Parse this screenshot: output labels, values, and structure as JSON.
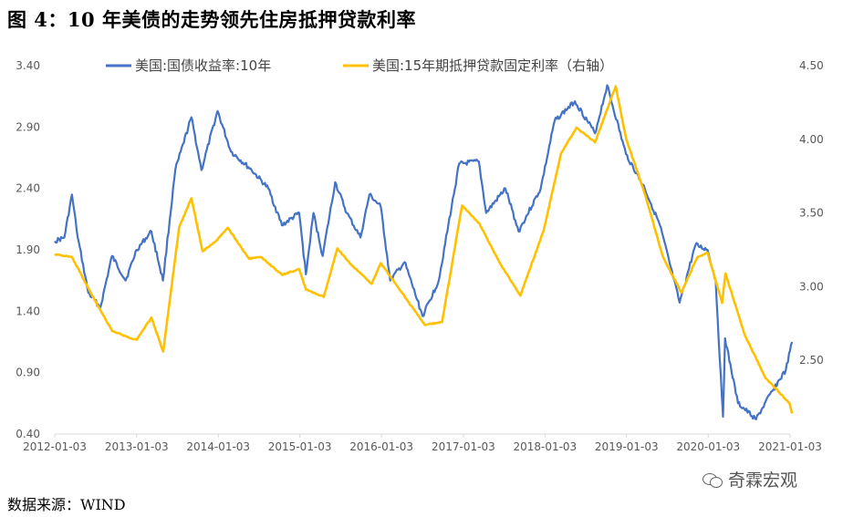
{
  "title": "图 4：10 年美债的走势领先住房抵押贷款利率",
  "source": "数据来源：WIND",
  "watermark": "奇霖宏观",
  "chart_data": {
    "type": "line",
    "title": "",
    "x_ticks": [
      "2012-01-03",
      "2013-01-03",
      "2014-01-03",
      "2015-01-03",
      "2016-01-03",
      "2017-01-03",
      "2018-01-03",
      "2019-01-03",
      "2020-01-03",
      "2021-01-03"
    ],
    "y_left": {
      "ticks": [
        "0.40",
        "0.90",
        "1.40",
        "1.90",
        "2.40",
        "2.90",
        "3.40"
      ],
      "lim": [
        0.4,
        3.4
      ]
    },
    "y_right": {
      "ticks": [
        "2.50",
        "3.00",
        "3.50",
        "4.00",
        "4.50"
      ],
      "lim": [
        2.0,
        4.5
      ]
    },
    "grid": false,
    "legend_position": "top",
    "series": [
      {
        "name": "美国:国债收益率:10年",
        "axis": "left",
        "color": "#4472C4",
        "points": [
          [
            "2012-01-03",
            1.97
          ],
          [
            "2012-02-15",
            2.0
          ],
          [
            "2012-03-20",
            2.35
          ],
          [
            "2012-04-15",
            2.0
          ],
          [
            "2012-06-01",
            1.55
          ],
          [
            "2012-07-25",
            1.43
          ],
          [
            "2012-09-15",
            1.85
          ],
          [
            "2012-11-15",
            1.65
          ],
          [
            "2013-01-03",
            1.9
          ],
          [
            "2013-03-10",
            2.05
          ],
          [
            "2013-05-01",
            1.65
          ],
          [
            "2013-06-25",
            2.55
          ],
          [
            "2013-09-05",
            2.98
          ],
          [
            "2013-10-20",
            2.55
          ],
          [
            "2013-12-31",
            3.03
          ],
          [
            "2014-03-01",
            2.7
          ],
          [
            "2014-06-01",
            2.55
          ],
          [
            "2014-08-15",
            2.4
          ],
          [
            "2014-10-15",
            2.1
          ],
          [
            "2014-12-31",
            2.2
          ],
          [
            "2015-01-30",
            1.7
          ],
          [
            "2015-03-05",
            2.2
          ],
          [
            "2015-04-15",
            1.85
          ],
          [
            "2015-06-10",
            2.45
          ],
          [
            "2015-08-01",
            2.2
          ],
          [
            "2015-10-01",
            2.0
          ],
          [
            "2015-11-10",
            2.35
          ],
          [
            "2015-12-31",
            2.25
          ],
          [
            "2016-02-11",
            1.65
          ],
          [
            "2016-04-15",
            1.8
          ],
          [
            "2016-07-05",
            1.36
          ],
          [
            "2016-09-15",
            1.65
          ],
          [
            "2016-12-15",
            2.6
          ],
          [
            "2017-03-13",
            2.62
          ],
          [
            "2017-04-15",
            2.2
          ],
          [
            "2017-07-10",
            2.4
          ],
          [
            "2017-09-07",
            2.05
          ],
          [
            "2017-12-15",
            2.4
          ],
          [
            "2018-02-15",
            2.95
          ],
          [
            "2018-05-17",
            3.11
          ],
          [
            "2018-08-15",
            2.85
          ],
          [
            "2018-10-08",
            3.24
          ],
          [
            "2018-12-31",
            2.68
          ],
          [
            "2019-03-25",
            2.4
          ],
          [
            "2019-06-01",
            2.1
          ],
          [
            "2019-08-28",
            1.47
          ],
          [
            "2019-11-07",
            1.94
          ],
          [
            "2019-12-31",
            1.9
          ],
          [
            "2020-02-05",
            1.65
          ],
          [
            "2020-03-09",
            0.54
          ],
          [
            "2020-03-18",
            1.18
          ],
          [
            "2020-05-15",
            0.65
          ],
          [
            "2020-08-04",
            0.52
          ],
          [
            "2020-10-15",
            0.75
          ],
          [
            "2020-12-15",
            0.92
          ],
          [
            "2021-01-12",
            1.15
          ]
        ]
      },
      {
        "name": "美国:15年期抵押贷款固定利率（右轴）",
        "axis": "right",
        "color": "#FFC000",
        "points": [
          [
            "2012-01-03",
            3.22
          ],
          [
            "2012-03-20",
            3.2
          ],
          [
            "2012-06-15",
            2.95
          ],
          [
            "2012-09-15",
            2.7
          ],
          [
            "2012-11-20",
            2.66
          ],
          [
            "2013-01-03",
            2.64
          ],
          [
            "2013-03-10",
            2.79
          ],
          [
            "2013-05-02",
            2.56
          ],
          [
            "2013-07-12",
            3.4
          ],
          [
            "2013-09-05",
            3.6
          ],
          [
            "2013-10-25",
            3.24
          ],
          [
            "2013-12-31",
            3.32
          ],
          [
            "2014-02-15",
            3.4
          ],
          [
            "2014-05-20",
            3.19
          ],
          [
            "2014-07-15",
            3.2
          ],
          [
            "2014-10-15",
            3.08
          ],
          [
            "2014-12-31",
            3.12
          ],
          [
            "2015-01-30",
            2.98
          ],
          [
            "2015-04-20",
            2.93
          ],
          [
            "2015-06-20",
            3.26
          ],
          [
            "2015-08-20",
            3.15
          ],
          [
            "2015-11-20",
            3.02
          ],
          [
            "2015-12-31",
            3.16
          ],
          [
            "2016-03-15",
            3.0
          ],
          [
            "2016-07-15",
            2.74
          ],
          [
            "2016-09-30",
            2.76
          ],
          [
            "2016-12-28",
            3.55
          ],
          [
            "2017-03-15",
            3.43
          ],
          [
            "2017-06-15",
            3.16
          ],
          [
            "2017-09-15",
            2.94
          ],
          [
            "2017-12-28",
            3.38
          ],
          [
            "2018-03-15",
            3.9
          ],
          [
            "2018-05-24",
            4.08
          ],
          [
            "2018-08-15",
            3.98
          ],
          [
            "2018-11-15",
            4.36
          ],
          [
            "2018-12-31",
            4.01
          ],
          [
            "2019-03-28",
            3.62
          ],
          [
            "2019-06-15",
            3.2
          ],
          [
            "2019-09-05",
            2.96
          ],
          [
            "2019-11-15",
            3.2
          ],
          [
            "2019-12-31",
            3.23
          ],
          [
            "2020-03-05",
            2.89
          ],
          [
            "2020-03-20",
            3.09
          ],
          [
            "2020-06-15",
            2.67
          ],
          [
            "2020-09-15",
            2.38
          ],
          [
            "2020-12-31",
            2.21
          ],
          [
            "2021-01-12",
            2.14
          ]
        ]
      }
    ]
  }
}
